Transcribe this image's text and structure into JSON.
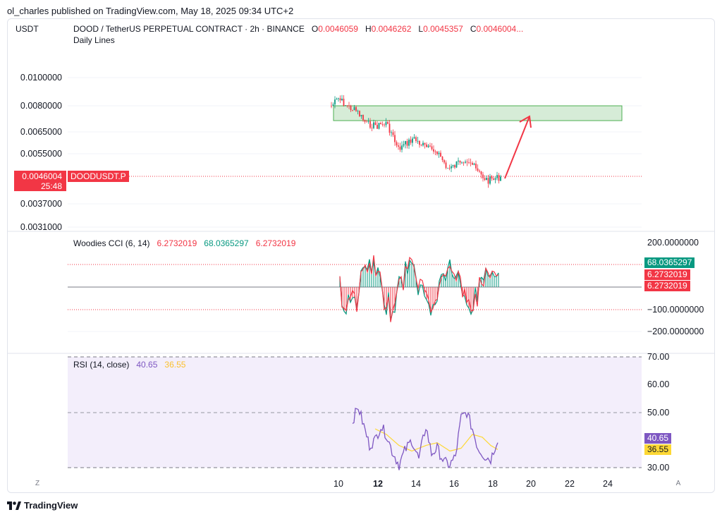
{
  "header": {
    "published_text": "ol_charles published on TradingView.com, May 18, 2025 09:34 UTC+2",
    "currency": "USDT",
    "symbol_title": "DOOD / TetherUS PERPETUAL CONTRACT · 2h · BINANCE",
    "ohlc": {
      "o_label": "O",
      "o_value": "0.0046059",
      "h_label": "H",
      "h_value": "0.0046262",
      "l_label": "L",
      "l_value": "0.0045357",
      "c_label": "C",
      "c_value": "0.0046004..."
    },
    "indicator_label": "Daily Lines"
  },
  "price_pane": {
    "y_axis_labels": [
      "0.0100000",
      "0.0080000",
      "0.0065000",
      "0.0055000",
      "0.0037000",
      "0.0031000"
    ],
    "current_price": "0.0046004",
    "countdown": "25:48",
    "symbol_tag": "DOODUSDT.P",
    "target_zone": {
      "low": 0.007,
      "high": 0.008
    },
    "colors": {
      "up": "#089981",
      "down": "#f23645",
      "zone": "#c8e6c9",
      "arrow": "#f23645"
    }
  },
  "cci_pane": {
    "legend_name": "Woodies CCI (6, 14)",
    "legend_values": [
      "6.2732019",
      "68.0365297",
      "6.2732019"
    ],
    "y_axis_labels": [
      "200.0000000",
      "−100.0000000",
      "−200.0000000"
    ],
    "tags": [
      "68.0365297",
      "6.2732019",
      "6.2732019"
    ],
    "colors": {
      "cci": "#089981",
      "turbo": "#f23645",
      "hist": "#f23645"
    }
  },
  "rsi_pane": {
    "legend_name": "RSI (14, close)",
    "legend_values": [
      "40.65",
      "36.55"
    ],
    "y_axis_labels": [
      "70.00",
      "60.00",
      "50.00",
      "30.00"
    ],
    "tags": [
      "40.65",
      "36.55"
    ],
    "colors": {
      "rsi": "#7e57c2",
      "ma": "#fdd835",
      "band": "#f3eefb"
    }
  },
  "time_axis": {
    "labels": [
      "10",
      "12",
      "14",
      "16",
      "18",
      "20",
      "22",
      "24"
    ],
    "bold_label": "12",
    "left_button": "Z",
    "right_button": "A"
  },
  "footer": {
    "brand": "TradingView"
  }
}
